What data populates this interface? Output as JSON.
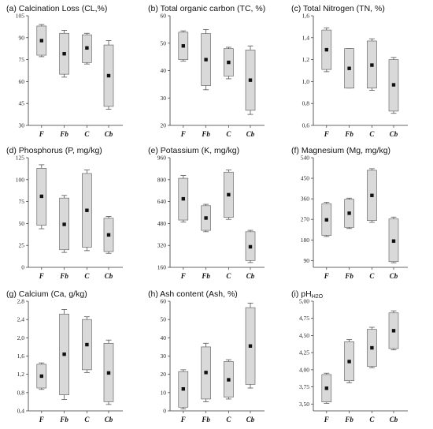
{
  "colors": {
    "box_fill": "#d9d9d9",
    "box_stroke": "#555555",
    "axis": "#333333",
    "mean": "#111111"
  },
  "chart_data": [
    {
      "type": "box",
      "panel": "(a)",
      "title": "Calcination Loss (CL,%)",
      "categories": [
        "F",
        "Fb",
        "C",
        "Cb"
      ],
      "yticks": [
        "30",
        "45",
        "60",
        "75",
        "90",
        "105"
      ],
      "ylim": [
        30,
        105
      ],
      "boxes": [
        {
          "min": 77,
          "q1": 78,
          "mean": 88,
          "q3": 98,
          "max": 99
        },
        {
          "min": 63,
          "q1": 65,
          "mean": 79,
          "q3": 93,
          "max": 95
        },
        {
          "min": 72,
          "q1": 73,
          "mean": 83,
          "q3": 92,
          "max": 93
        },
        {
          "min": 41,
          "q1": 43,
          "mean": 64,
          "q3": 85,
          "max": 88
        }
      ]
    },
    {
      "type": "box",
      "panel": "(b)",
      "title": "Total organic carbon (TC, %)",
      "categories": [
        "F",
        "Fb",
        "C",
        "Cb"
      ],
      "yticks": [
        "20",
        "30",
        "40",
        "50",
        "60"
      ],
      "ylim": [
        20,
        60
      ],
      "boxes": [
        {
          "min": 43.5,
          "q1": 44,
          "mean": 49,
          "q3": 54,
          "max": 54.5
        },
        {
          "min": 33,
          "q1": 34.5,
          "mean": 44,
          "q3": 53.5,
          "max": 55
        },
        {
          "min": 37,
          "q1": 38,
          "mean": 43,
          "q3": 48,
          "max": 48.5
        },
        {
          "min": 24,
          "q1": 25.5,
          "mean": 36.5,
          "q3": 47.5,
          "max": 49
        }
      ]
    },
    {
      "type": "box",
      "panel": "(c)",
      "title": "Total Nitrogen (TN, %)",
      "categories": [
        "F",
        "Fb",
        "C",
        "Cb"
      ],
      "yticks": [
        "0,6",
        "0,8",
        "1,0",
        "1,2",
        "1,4",
        "1,6"
      ],
      "ylim": [
        0.6,
        1.6
      ],
      "boxes": [
        {
          "min": 1.09,
          "q1": 1.11,
          "mean": 1.29,
          "q3": 1.47,
          "max": 1.49
        },
        {
          "min": 0.94,
          "q1": 0.94,
          "mean": 1.12,
          "q3": 1.3,
          "max": 1.3
        },
        {
          "min": 0.92,
          "q1": 0.94,
          "mean": 1.15,
          "q3": 1.37,
          "max": 1.39
        },
        {
          "min": 0.71,
          "q1": 0.73,
          "mean": 0.97,
          "q3": 1.2,
          "max": 1.22
        }
      ]
    },
    {
      "type": "box",
      "panel": "(d)",
      "title": "Phosphorus (P, mg/kg)",
      "categories": [
        "F",
        "Fb",
        "C",
        "Cb"
      ],
      "yticks": [
        "0",
        "25",
        "50",
        "75",
        "100",
        "125"
      ],
      "ylim": [
        0,
        125
      ],
      "boxes": [
        {
          "min": 44,
          "q1": 48,
          "mean": 81,
          "q3": 113,
          "max": 117
        },
        {
          "min": 17,
          "q1": 20,
          "mean": 49,
          "q3": 79,
          "max": 82
        },
        {
          "min": 19,
          "q1": 23,
          "mean": 65,
          "q3": 107,
          "max": 111
        },
        {
          "min": 16,
          "q1": 18,
          "mean": 37,
          "q3": 56,
          "max": 58
        }
      ]
    },
    {
      "type": "box",
      "panel": "(e)",
      "title": "Potassium (K, mg/kg)",
      "categories": [
        "F",
        "Fb",
        "C",
        "Cb"
      ],
      "yticks": [
        "160",
        "320",
        "480",
        "640",
        "800",
        "960"
      ],
      "ylim": [
        160,
        960
      ],
      "boxes": [
        {
          "min": 490,
          "q1": 505,
          "mean": 660,
          "q3": 810,
          "max": 830
        },
        {
          "min": 420,
          "q1": 430,
          "mean": 520,
          "q3": 610,
          "max": 620
        },
        {
          "min": 510,
          "q1": 525,
          "mean": 690,
          "q3": 855,
          "max": 870
        },
        {
          "min": 195,
          "q1": 210,
          "mean": 310,
          "q3": 420,
          "max": 430
        }
      ]
    },
    {
      "type": "box",
      "panel": "(f)",
      "title": "Magnesium (Mg, mg/kg)",
      "categories": [
        "F",
        "Fb",
        "C",
        "Cb"
      ],
      "yticks": [
        "90",
        "180",
        "270",
        "360",
        "450",
        "540"
      ],
      "ylim": [
        60,
        540
      ],
      "boxes": [
        {
          "min": 195,
          "q1": 200,
          "mean": 268,
          "q3": 338,
          "max": 345
        },
        {
          "min": 230,
          "q1": 235,
          "mean": 297,
          "q3": 358,
          "max": 363
        },
        {
          "min": 257,
          "q1": 265,
          "mean": 375,
          "q3": 485,
          "max": 492
        },
        {
          "min": 80,
          "q1": 85,
          "mean": 175,
          "q3": 272,
          "max": 280
        }
      ]
    },
    {
      "type": "box",
      "panel": "(g)",
      "title": "Calcium (Ca, g/kg)",
      "categories": [
        "F",
        "Fb",
        "C",
        "Cb"
      ],
      "yticks": [
        "0,4",
        "0,8",
        "1,2",
        "1,6",
        "2,0",
        "2,4",
        "2,8"
      ],
      "ylim": [
        0.4,
        2.8
      ],
      "boxes": [
        {
          "min": 0.87,
          "q1": 0.9,
          "mean": 1.16,
          "q3": 1.42,
          "max": 1.45
        },
        {
          "min": 0.65,
          "q1": 0.75,
          "mean": 1.64,
          "q3": 2.52,
          "max": 2.62
        },
        {
          "min": 1.24,
          "q1": 1.3,
          "mean": 1.85,
          "q3": 2.4,
          "max": 2.46
        },
        {
          "min": 0.54,
          "q1": 0.6,
          "mean": 1.23,
          "q3": 1.88,
          "max": 1.95
        }
      ]
    },
    {
      "type": "box",
      "panel": "(h)",
      "title": "Ash content (Ash, %)",
      "categories": [
        "F",
        "Fb",
        "C",
        "Cb"
      ],
      "yticks": [
        "0",
        "10",
        "20",
        "30",
        "40",
        "50",
        "60"
      ],
      "ylim": [
        0,
        60
      ],
      "boxes": [
        {
          "min": 1,
          "q1": 2,
          "mean": 12,
          "q3": 21.5,
          "max": 22.5
        },
        {
          "min": 5,
          "q1": 6.5,
          "mean": 21,
          "q3": 35,
          "max": 37
        },
        {
          "min": 6.5,
          "q1": 7.5,
          "mean": 17,
          "q3": 27,
          "max": 28
        },
        {
          "min": 12.5,
          "q1": 14.5,
          "mean": 35.5,
          "q3": 56.5,
          "max": 59
        }
      ]
    },
    {
      "type": "box",
      "panel": "(i)",
      "title": "pH",
      "title_sub": "H2O",
      "categories": [
        "F",
        "Fb",
        "C",
        "Cb"
      ],
      "yticks": [
        "3,50",
        "3,75",
        "4,00",
        "4,25",
        "4,50",
        "4,75",
        "5,00"
      ],
      "ylim": [
        3.4,
        5.0
      ],
      "boxes": [
        {
          "min": 3.51,
          "q1": 3.53,
          "mean": 3.73,
          "q3": 3.93,
          "max": 3.95
        },
        {
          "min": 3.81,
          "q1": 3.84,
          "mean": 4.12,
          "q3": 4.41,
          "max": 4.44
        },
        {
          "min": 4.03,
          "q1": 4.05,
          "mean": 4.32,
          "q3": 4.59,
          "max": 4.62
        },
        {
          "min": 4.29,
          "q1": 4.31,
          "mean": 4.57,
          "q3": 4.83,
          "max": 4.86
        }
      ]
    }
  ]
}
